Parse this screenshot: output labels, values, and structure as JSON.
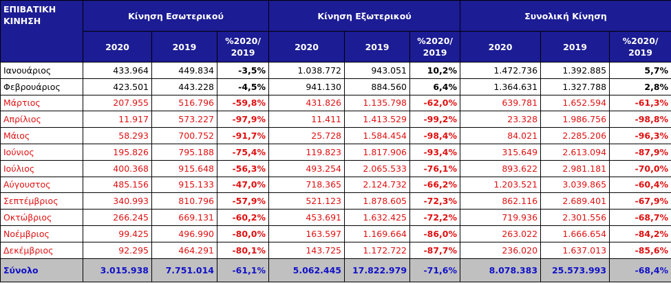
{
  "table": {
    "corner": "ΕΠΙΒΑΤΙΚΗ\nΚΙΝΗΣΗ",
    "groups": [
      "Κίνηση Εσωτερικού",
      "Κίνηση Εξωτερικού",
      "Συνολική Κίνηση"
    ],
    "subheader": [
      "2020",
      "2019",
      "%2020/\n2019",
      "2020",
      "2019",
      "%2020/\n2019",
      "2020",
      "2019",
      "%2020/\n2019"
    ],
    "rows": [
      [
        "Ιανουάριος",
        "433.964",
        "449.834",
        "-3,5%",
        "1.038.772",
        "943.051",
        "10,2%",
        "1.472.736",
        "1.392.885",
        "5,7%"
      ],
      [
        "Φεβρουάριος",
        "423.501",
        "443.228",
        "-4,5%",
        "941.130",
        "884.560",
        "6,4%",
        "1.364.631",
        "1.327.788",
        "2,8%"
      ],
      [
        "Μάρτιος",
        "207.955",
        "516.796",
        "-59,8%",
        "431.826",
        "1.135.798",
        "-62,0%",
        "639.781",
        "1.652.594",
        "-61,3%"
      ],
      [
        "Απρίλιος",
        "11.917",
        "573.227",
        "-97,9%",
        "11.411",
        "1.413.529",
        "-99,2%",
        "23.328",
        "1.986.756",
        "-98,8%"
      ],
      [
        "Μάιος",
        "58.293",
        "700.752",
        "-91,7%",
        "25.728",
        "1.584.454",
        "-98,4%",
        "84.021",
        "2.285.206",
        "-96,3%"
      ],
      [
        "Ιούνιος",
        "195.826",
        "795.188",
        "-75,4%",
        "119.823",
        "1.817.906",
        "-93,4%",
        "315.649",
        "2.613.094",
        "-87,9%"
      ],
      [
        "Ιούλιος",
        "400.368",
        "915.648",
        "-56,3%",
        "493.254",
        "2.065.533",
        "-76,1%",
        "893.622",
        "2.981.181",
        "-70,0%"
      ],
      [
        "Αύγουστος",
        "485.156",
        "915.133",
        "-47,0%",
        "718.365",
        "2.124.732",
        "-66,2%",
        "1.203.521",
        "3.039.865",
        "-60,4%"
      ],
      [
        "Σεπτέμβριος",
        "340.993",
        "810.796",
        "-57,9%",
        "521.123",
        "1.878.605",
        "-72,3%",
        "862.116",
        "2.689.401",
        "-67,9%"
      ],
      [
        "Οκτώβριος",
        "266.245",
        "669.131",
        "-60,2%",
        "453.691",
        "1.632.425",
        "-72,2%",
        "719.936",
        "2.301.556",
        "-68,7%"
      ],
      [
        "Νοέμβριος",
        "99.425",
        "496.990",
        "-80,0%",
        "163.597",
        "1.169.664",
        "-86,0%",
        "263.022",
        "1.666.654",
        "-84,2%"
      ],
      [
        "Δεκέμβριος",
        "92.295",
        "464.291",
        "-80,1%",
        "143.725",
        "1.172.722",
        "-87,7%",
        "236.020",
        "1.637.013",
        "-85,6%"
      ]
    ],
    "total": [
      "Σύνολο",
      "3.015.938",
      "7.751.014",
      "-61,1%",
      "5.062.445",
      "17.822.979",
      "-71,6%",
      "8.078.383",
      "25.573.993",
      "-68,4%"
    ]
  }
}
